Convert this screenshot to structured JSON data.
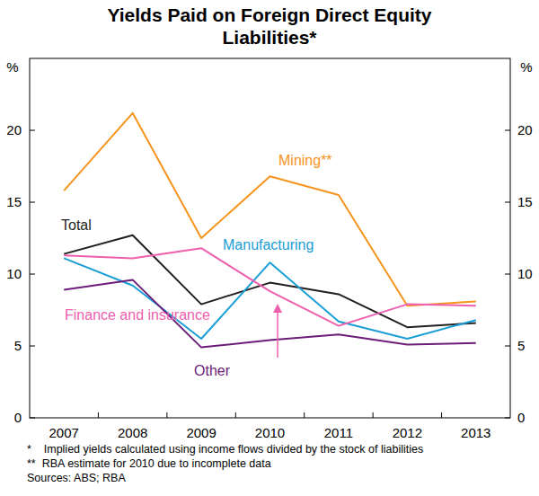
{
  "chart_data": {
    "type": "line",
    "title": "Yields Paid on Foreign Direct Equity Liabilities*",
    "y_label": "%",
    "categories": [
      "2007",
      "2008",
      "2009",
      "2010",
      "2011",
      "2012",
      "2013"
    ],
    "ylim": [
      0,
      25
    ],
    "yticks": [
      0,
      5,
      10,
      15,
      20
    ],
    "grid": false,
    "marker": "none",
    "series": [
      {
        "name": "Mining**",
        "color": "#f7941d",
        "values": [
          15.8,
          21.2,
          12.5,
          16.8,
          15.5,
          7.8,
          8.1
        ]
      },
      {
        "name": "Total",
        "color": "#231f20",
        "values": [
          11.4,
          12.7,
          7.9,
          9.4,
          8.6,
          6.3,
          6.6
        ]
      },
      {
        "name": "Manufacturing",
        "color": "#1b9ed6",
        "values": [
          11.1,
          9.2,
          5.5,
          10.8,
          6.7,
          5.5,
          6.8
        ]
      },
      {
        "name": "Finance and insurance",
        "color": "#ee5fae",
        "values": [
          11.3,
          11.1,
          11.8,
          8.8,
          6.4,
          7.9,
          7.8
        ]
      },
      {
        "name": "Other",
        "color": "#6b1d78",
        "values": [
          8.9,
          9.6,
          4.9,
          5.4,
          5.8,
          5.1,
          5.2
        ]
      }
    ],
    "notes": [
      "*    Implied yields calculated using income flows divided by the stock of liabilities",
      "**  RBA estimate for 2010 due to incomplete data",
      "Sources: ABS; RBA"
    ]
  }
}
